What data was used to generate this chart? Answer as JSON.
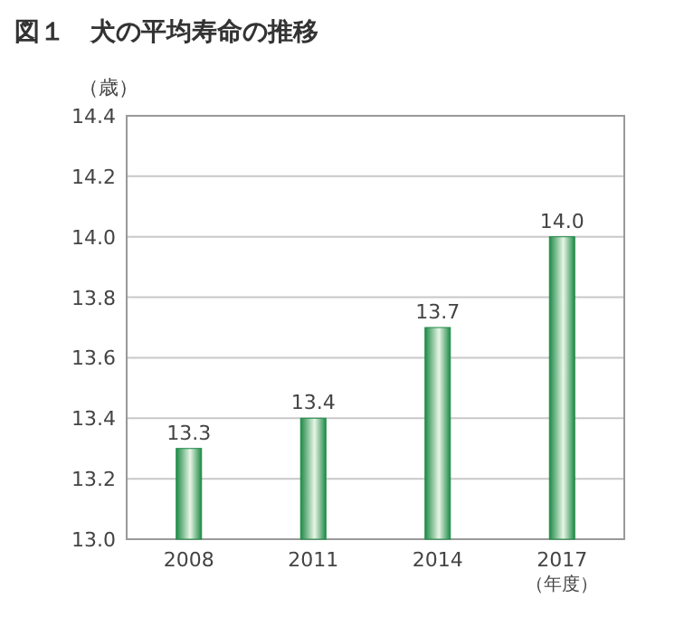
{
  "chart_data": {
    "type": "bar",
    "title": "図１　犬の平均寿命の推移",
    "ylabel": "（歳）",
    "xlabel": "（年度）",
    "categories": [
      "2008",
      "2011",
      "2014",
      "2017"
    ],
    "values": [
      13.3,
      13.4,
      13.7,
      14.0
    ],
    "value_labels": [
      "13.3",
      "13.4",
      "13.7",
      "14.0"
    ],
    "color": "#1e8a46",
    "ylim": [
      13.0,
      14.4
    ],
    "yticks": [
      {
        "value": 13.0,
        "label": "13.0"
      },
      13.2,
      13.4,
      13.6,
      13.8,
      {
        "value": 14.0,
        "label": "14.0"
      },
      14.2,
      14.4
    ],
    "grid": "y"
  }
}
